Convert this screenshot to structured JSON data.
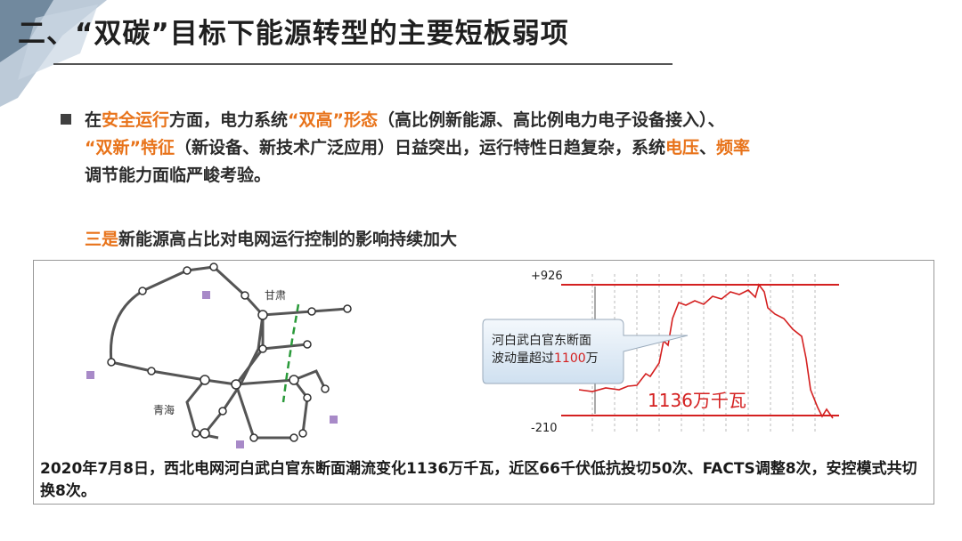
{
  "header": {
    "title": "二、“双碳”目标下能源转型的主要短板弱项"
  },
  "bullet": {
    "parts": [
      "在",
      "安全运行",
      "方面，电力系统",
      "“双高”形态",
      "（高比例新能源、高比例电力电子设备接入）、",
      "“双新”特征",
      "（新设备、新技术广泛应用）日益突出，运行特性日趋复杂，系统",
      "电压",
      "、",
      "频率",
      "调节能力面临严峻考验。"
    ]
  },
  "subheading": {
    "lead": "三是",
    "text": "新能源高占比对电网运行控制的影响持续加大"
  },
  "figure": {
    "map": {
      "labels": [
        "甘肃",
        "青海"
      ]
    },
    "chart": {
      "top_label": "+926",
      "bottom_label": "-210",
      "callout": {
        "line1": "河白武白官东断面",
        "line2_pre": "波动量超过",
        "line2_num": "1100",
        "line2_post": "万"
      },
      "annotation": "1136万千瓦"
    },
    "caption": "2020年7月8日，西北电网河白武白官东断面潮流变化1136万千瓦，近区66千伏低抗投切50次、FACTS调整8次，安控模式共切换8次。"
  }
}
